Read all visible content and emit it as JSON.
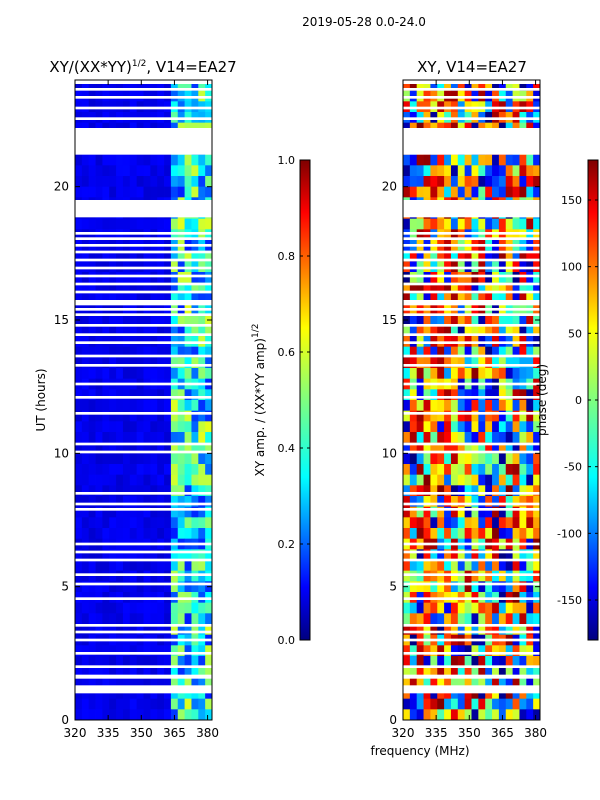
{
  "suptitle": "2019-05-28 0.0-24.0",
  "colors": {
    "background": "#ffffff",
    "axis": "#000000",
    "jet": [
      "#00007f",
      "#0000ff",
      "#007fff",
      "#00ffff",
      "#7fff7f",
      "#ffff00",
      "#ff7f00",
      "#ff0000",
      "#7f0000"
    ]
  },
  "chart_data": [
    {
      "type": "heatmap",
      "title_main": "XY/(XX*YY)",
      "title_sup": "1/2",
      "title_tail": ", V14=EA27",
      "xlabel": "",
      "ylabel": "UT (hours)",
      "xlim": [
        320,
        382
      ],
      "ylim": [
        0,
        24
      ],
      "xticks": [
        320,
        335,
        350,
        365,
        380
      ],
      "yticks": [
        0,
        5,
        10,
        15,
        20
      ],
      "bright_band_mhz": [
        363,
        382
      ],
      "colorbar": {
        "label_main": "XY amp. / (XX*YY amp)",
        "label_sup": "1/2",
        "range": [
          0.0,
          1.0
        ],
        "ticks": [
          "0.0",
          "0.2",
          "0.4",
          "0.6",
          "0.8",
          "1.0"
        ]
      }
    },
    {
      "type": "heatmap",
      "title_main": "XY, V14=EA27",
      "xlabel": "frequency (MHz)",
      "ylabel": "",
      "xlim": [
        320,
        382
      ],
      "ylim": [
        0,
        24
      ],
      "xticks": [
        320,
        335,
        350,
        365,
        380
      ],
      "yticks": [
        0,
        5,
        10,
        15,
        20
      ],
      "colorbar": {
        "label_main": "phase (deg)",
        "range": [
          -180,
          180
        ],
        "ticks": [
          "-150",
          "-100",
          "-50",
          "0",
          "50",
          "100",
          "150"
        ]
      }
    }
  ],
  "flagged_hours": [
    [
      1.0,
      1.3
    ],
    [
      1.55,
      1.7
    ],
    [
      1.95,
      2.05
    ],
    [
      2.45,
      2.55
    ],
    [
      2.95,
      3.05
    ],
    [
      3.25,
      3.35
    ],
    [
      3.5,
      3.6
    ],
    [
      4.5,
      4.6
    ],
    [
      5.05,
      5.15
    ],
    [
      5.4,
      5.5
    ],
    [
      5.95,
      6.05
    ],
    [
      6.25,
      6.35
    ],
    [
      6.55,
      6.65
    ],
    [
      7.85,
      7.95
    ],
    [
      8.05,
      8.15
    ],
    [
      8.45,
      8.55
    ],
    [
      10.0,
      10.1
    ],
    [
      10.3,
      10.4
    ],
    [
      11.45,
      11.55
    ],
    [
      12.05,
      12.15
    ],
    [
      12.55,
      12.65
    ],
    [
      13.25,
      13.35
    ],
    [
      13.6,
      13.7
    ],
    [
      14.1,
      14.2
    ],
    [
      14.4,
      14.5
    ],
    [
      14.75,
      14.85
    ],
    [
      15.15,
      15.25
    ],
    [
      15.35,
      15.45
    ],
    [
      15.55,
      15.75
    ],
    [
      16.0,
      16.1
    ],
    [
      16.3,
      16.4
    ],
    [
      16.6,
      16.7
    ],
    [
      16.9,
      17.0
    ],
    [
      17.2,
      17.3
    ],
    [
      17.5,
      17.6
    ],
    [
      17.75,
      17.85
    ],
    [
      18.0,
      18.1
    ],
    [
      18.2,
      18.3
    ],
    [
      18.85,
      19.5
    ],
    [
      21.2,
      22.2
    ],
    [
      22.5,
      22.6
    ],
    [
      22.9,
      23.0
    ],
    [
      23.3,
      23.4
    ],
    [
      23.6,
      23.7
    ],
    [
      23.85,
      24.0
    ]
  ]
}
